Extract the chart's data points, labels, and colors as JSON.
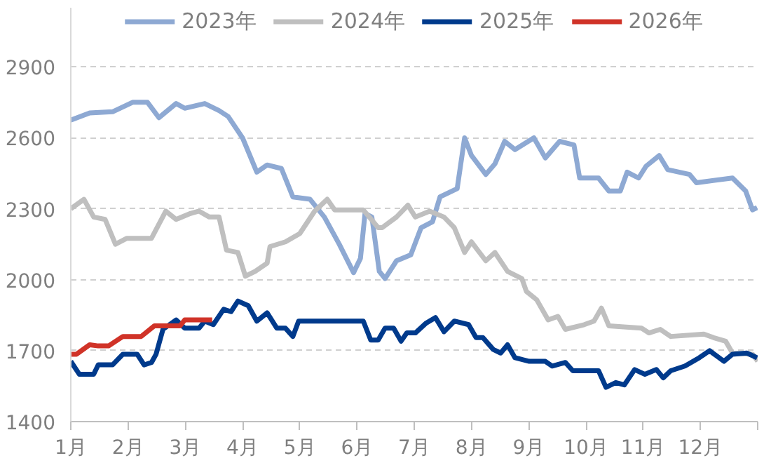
{
  "chart_data": {
    "type": "line",
    "legend": "top",
    "grid": "y",
    "line_style": "solid",
    "marker": "none",
    "xlim": [
      1,
      13
    ],
    "xticks": [
      {
        "value": 1,
        "label": "1月"
      },
      {
        "value": 2,
        "label": "2月"
      },
      {
        "value": 3,
        "label": "3月"
      },
      {
        "value": 4,
        "label": "4月"
      },
      {
        "value": 5,
        "label": "5月"
      },
      {
        "value": 6,
        "label": "6月"
      },
      {
        "value": 7,
        "label": "7月"
      },
      {
        "value": 8,
        "label": "8月"
      },
      {
        "value": 9,
        "label": "9月"
      },
      {
        "value": 10,
        "label": "10月"
      },
      {
        "value": 11,
        "label": "11月"
      },
      {
        "value": 12,
        "label": "12月"
      },
      {
        "value": 13,
        "label": null
      }
    ],
    "ylim": [
      1400,
      3150
    ],
    "yticks": [
      1400,
      1700,
      2000,
      2300,
      2600,
      2900
    ],
    "series": [
      {
        "name": "2023年",
        "color": "#8ea9d3",
        "x": [
          1,
          1.33,
          1.73,
          2.08,
          2.34,
          2.54,
          2.84,
          2.99,
          3.34,
          3.59,
          3.75,
          4.0,
          4.25,
          4.43,
          4.68,
          4.88,
          5.18,
          5.43,
          5.69,
          5.94,
          6.06,
          6.14,
          6.26,
          6.39,
          6.49,
          6.69,
          6.94,
          7.12,
          7.32,
          7.45,
          7.75,
          7.88,
          8.0,
          8.25,
          8.41,
          8.58,
          8.76,
          9.09,
          9.29,
          9.54,
          9.79,
          9.89,
          10.22,
          10.4,
          10.6,
          10.72,
          10.92,
          11.05,
          11.28,
          11.43,
          11.81,
          11.93,
          12.56,
          12.79,
          12.91,
          12.99
        ],
        "values": [
          2675,
          2705,
          2710,
          2750,
          2750,
          2685,
          2745,
          2725,
          2745,
          2715,
          2690,
          2600,
          2455,
          2485,
          2470,
          2350,
          2340,
          2265,
          2150,
          2030,
          2090,
          2280,
          2265,
          2035,
          2005,
          2080,
          2105,
          2220,
          2245,
          2350,
          2385,
          2600,
          2525,
          2445,
          2490,
          2585,
          2550,
          2600,
          2515,
          2585,
          2570,
          2430,
          2430,
          2375,
          2375,
          2455,
          2430,
          2480,
          2525,
          2465,
          2445,
          2410,
          2430,
          2375,
          2295,
          2305
        ]
      },
      {
        "name": "2024年",
        "color": "#bfbfbf",
        "x": [
          1,
          1.23,
          1.4,
          1.6,
          1.78,
          1.98,
          2.41,
          2.66,
          2.84,
          3.09,
          3.24,
          3.42,
          3.59,
          3.72,
          3.92,
          4.05,
          4.22,
          4.43,
          4.48,
          4.75,
          5.0,
          5.26,
          5.48,
          5.61,
          6.11,
          6.37,
          6.44,
          6.69,
          6.89,
          7.02,
          7.27,
          7.52,
          7.7,
          7.88,
          8.0,
          8.25,
          8.41,
          8.63,
          8.88,
          8.96,
          9.14,
          9.34,
          9.51,
          9.64,
          9.97,
          10.14,
          10.27,
          10.4,
          10.97,
          11.1,
          11.3,
          11.48,
          12.06,
          12.23,
          12.44,
          12.56,
          12.91,
          13.0
        ],
        "values": [
          2300,
          2340,
          2265,
          2255,
          2150,
          2175,
          2175,
          2290,
          2255,
          2280,
          2290,
          2265,
          2265,
          2125,
          2115,
          2015,
          2035,
          2070,
          2140,
          2160,
          2195,
          2290,
          2340,
          2295,
          2295,
          2220,
          2220,
          2265,
          2315,
          2265,
          2290,
          2265,
          2220,
          2115,
          2160,
          2080,
          2115,
          2035,
          2005,
          1950,
          1915,
          1830,
          1845,
          1790,
          1810,
          1825,
          1880,
          1805,
          1795,
          1775,
          1790,
          1760,
          1770,
          1755,
          1740,
          1690,
          1685,
          1655
        ]
      },
      {
        "name": "2025年",
        "color": "#003a8c",
        "x": [
          1,
          1.15,
          1.4,
          1.48,
          1.73,
          1.91,
          2.16,
          2.28,
          2.41,
          2.49,
          2.61,
          2.84,
          2.99,
          3.24,
          3.34,
          3.49,
          3.67,
          3.8,
          3.92,
          4.1,
          4.25,
          4.43,
          4.6,
          4.75,
          4.88,
          4.98,
          6.11,
          6.24,
          6.37,
          6.49,
          6.64,
          6.77,
          6.87,
          7.02,
          7.2,
          7.37,
          7.52,
          7.7,
          7.95,
          8.08,
          8.2,
          8.38,
          8.51,
          8.63,
          8.76,
          9.01,
          9.29,
          9.41,
          9.64,
          9.77,
          10.22,
          10.35,
          10.52,
          10.67,
          10.85,
          11.03,
          11.23,
          11.35,
          11.48,
          11.73,
          11.98,
          12.16,
          12.41,
          12.56,
          12.81,
          12.99
        ],
        "values": [
          1655,
          1600,
          1600,
          1640,
          1640,
          1685,
          1685,
          1640,
          1650,
          1685,
          1790,
          1830,
          1795,
          1795,
          1825,
          1810,
          1875,
          1865,
          1910,
          1890,
          1825,
          1860,
          1795,
          1795,
          1760,
          1825,
          1825,
          1745,
          1745,
          1795,
          1795,
          1740,
          1775,
          1775,
          1815,
          1840,
          1780,
          1825,
          1810,
          1755,
          1755,
          1705,
          1690,
          1725,
          1670,
          1655,
          1655,
          1635,
          1650,
          1615,
          1615,
          1545,
          1565,
          1555,
          1620,
          1600,
          1620,
          1585,
          1615,
          1635,
          1670,
          1700,
          1655,
          1685,
          1690,
          1670
        ]
      },
      {
        "name": "2026年",
        "color": "#d03328",
        "x": [
          1,
          1.1,
          1.33,
          1.48,
          1.66,
          1.91,
          2.23,
          2.46,
          2.91,
          2.99,
          3.47
        ],
        "values": [
          1685,
          1685,
          1725,
          1720,
          1720,
          1760,
          1760,
          1805,
          1805,
          1830,
          1830
        ]
      }
    ]
  }
}
